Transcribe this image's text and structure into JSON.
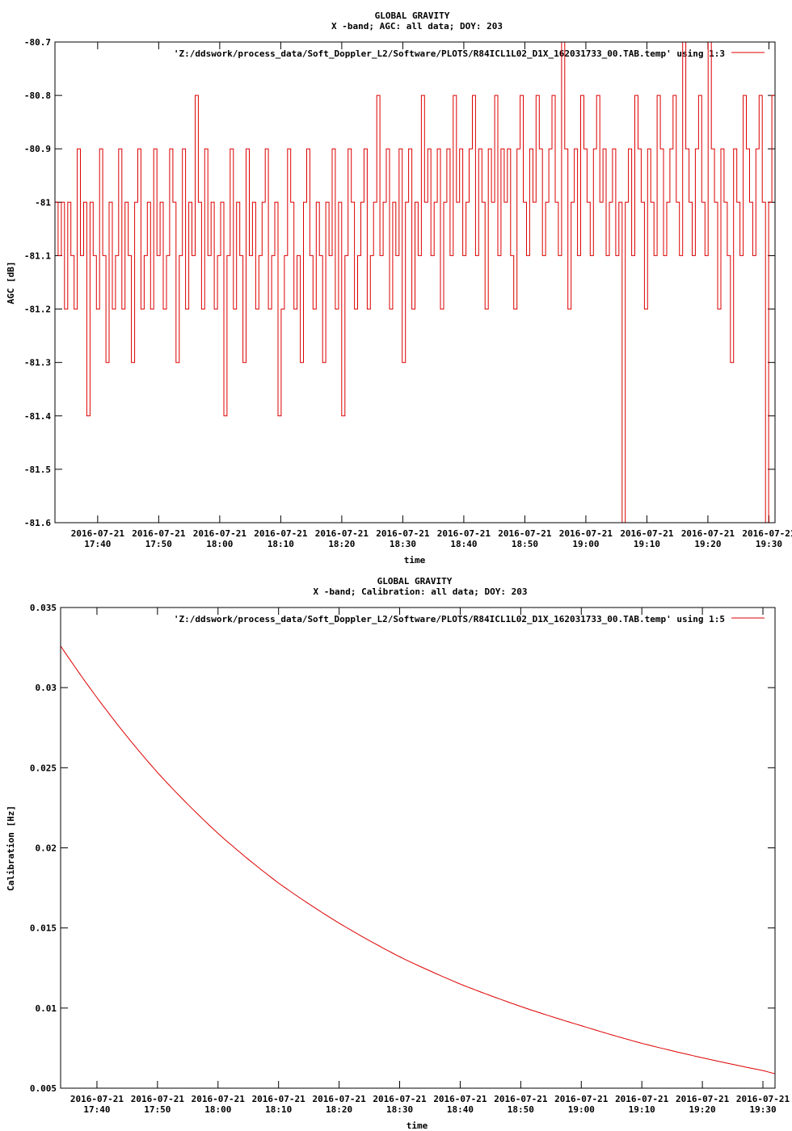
{
  "colors": {
    "series": "#dd0000",
    "axis": "#000000",
    "background": "#ffffff"
  },
  "x_tick_date": "2016-07-21",
  "chart_data": [
    {
      "type": "line",
      "title": "GLOBAL GRAVITY",
      "subtitle": "X -band; AGC: all data; DOY: 203",
      "xlabel": "time",
      "ylabel": "AGC [dB]",
      "legend_entry": "'Z:/ddswork/process_data/Soft_Doppler_L2/Software/PLOTS/R84ICL1L02_D1X_162031733_00.TAB.temp' using 1:3",
      "legend_position": "top-right",
      "xlim": [
        "17:33",
        "19:31"
      ],
      "ylim": [
        -81.6,
        -80.7
      ],
      "y_ticks": [
        "-80.7",
        "-80.8",
        "-80.9",
        "-81",
        "-81.1",
        "-81.2",
        "-81.3",
        "-81.4",
        "-81.5",
        "-81.6"
      ],
      "x_ticks": [
        "17:40",
        "17:50",
        "18:00",
        "18:10",
        "18:20",
        "18:30",
        "18:40",
        "18:50",
        "19:00",
        "19:10",
        "19:20",
        "19:30"
      ],
      "grid": false,
      "series": [
        {
          "time_start": "17:33",
          "time_end": "19:31",
          "levels": [
            -81.0,
            -81.1,
            -81.0,
            -81.2,
            -81.0,
            -81.1,
            -81.2,
            -80.9,
            -81.1,
            -81.0,
            -81.4,
            -81.0,
            -81.1,
            -81.2,
            -80.9,
            -81.1,
            -81.3,
            -81.0,
            -81.2,
            -81.1,
            -80.9,
            -81.2,
            -81.0,
            -81.1,
            -81.3,
            -81.0,
            -80.9,
            -81.2,
            -81.1,
            -81.0,
            -81.2,
            -80.9,
            -81.1,
            -81.0,
            -81.2,
            -81.1,
            -80.9,
            -81.0,
            -81.3,
            -81.1,
            -80.9,
            -81.2,
            -81.0,
            -81.1,
            -80.8,
            -81.0,
            -81.2,
            -80.9,
            -81.1,
            -81.0,
            -81.2,
            -81.1,
            -81.0,
            -81.4,
            -81.1,
            -80.9,
            -81.2,
            -81.0,
            -81.1,
            -81.3,
            -80.9,
            -81.1,
            -81.0,
            -81.2,
            -81.1,
            -81.0,
            -80.9,
            -81.2,
            -81.1,
            -81.0,
            -81.4,
            -81.2,
            -81.1,
            -80.9,
            -81.0,
            -81.2,
            -81.1,
            -81.3,
            -81.0,
            -80.9,
            -81.1,
            -81.2,
            -81.0,
            -81.1,
            -81.3,
            -81.0,
            -81.1,
            -80.9,
            -81.2,
            -81.0,
            -81.4,
            -81.1,
            -80.9,
            -81.0,
            -81.2,
            -81.1,
            -81.0,
            -80.9,
            -81.2,
            -81.1,
            -81.0,
            -80.8,
            -81.1,
            -81.0,
            -80.9,
            -81.2,
            -81.0,
            -81.1,
            -80.9,
            -81.3,
            -81.0,
            -80.9,
            -81.2,
            -81.0,
            -81.1,
            -80.8,
            -81.0,
            -80.9,
            -81.1,
            -81.0,
            -80.9,
            -81.2,
            -81.0,
            -80.9,
            -81.1,
            -80.8,
            -81.0,
            -80.9,
            -81.1,
            -81.0,
            -80.9,
            -80.8,
            -81.1,
            -80.9,
            -81.0,
            -81.2,
            -80.9,
            -81.0,
            -80.8,
            -81.1,
            -80.9,
            -81.0,
            -80.9,
            -81.1,
            -81.2,
            -80.9,
            -80.8,
            -81.0,
            -81.1,
            -80.9,
            -81.0,
            -80.8,
            -80.9,
            -81.1,
            -81.0,
            -80.9,
            -80.8,
            -81.0,
            -81.1,
            -80.7,
            -80.9,
            -81.2,
            -81.0,
            -80.9,
            -81.1,
            -80.8,
            -80.9,
            -81.0,
            -81.1,
            -80.9,
            -80.8,
            -81.0,
            -80.9,
            -81.1,
            -81.0,
            -80.9,
            -81.1,
            -81.0,
            -81.6,
            -81.0,
            -80.9,
            -81.1,
            -80.8,
            -80.9,
            -81.0,
            -81.2,
            -80.9,
            -81.0,
            -81.1,
            -80.8,
            -80.9,
            -81.1,
            -81.0,
            -80.9,
            -80.8,
            -81.0,
            -81.1,
            -80.7,
            -80.9,
            -81.0,
            -81.1,
            -80.9,
            -80.8,
            -81.0,
            -81.1,
            -80.7,
            -80.9,
            -81.0,
            -81.2,
            -80.9,
            -81.0,
            -81.1,
            -81.3,
            -80.9,
            -81.0,
            -81.1,
            -80.8,
            -80.9,
            -81.0,
            -81.1,
            -80.9,
            -80.8,
            -81.0,
            -81.6,
            -81.0,
            -80.8,
            -81.1
          ]
        }
      ]
    },
    {
      "type": "line",
      "title": "GLOBAL GRAVITY",
      "subtitle": "X -band; Calibration: all data; DOY: 203",
      "xlabel": "time",
      "ylabel": "Calibration [Hz]",
      "legend_entry": "'Z:/ddswork/process_data/Soft_Doppler_L2/Software/PLOTS/R84ICL1L02_D1X_162031733_00.TAB.temp' using 1:5",
      "legend_position": "top-right",
      "xlim": [
        "17:34",
        "19:32"
      ],
      "ylim": [
        0.005,
        0.035
      ],
      "y_ticks": [
        "0.035",
        "0.03",
        "0.025",
        "0.02",
        "0.015",
        "0.01",
        "0.005"
      ],
      "x_ticks": [
        "17:40",
        "17:50",
        "18:00",
        "18:10",
        "18:20",
        "18:30",
        "18:40",
        "18:50",
        "19:00",
        "19:10",
        "19:20",
        "19:30"
      ],
      "grid": false,
      "series": [
        {
          "x": [
            "17:34",
            "17:50",
            "18:00",
            "18:10",
            "18:20",
            "18:30",
            "18:40",
            "18:50",
            "19:00",
            "19:10",
            "19:20",
            "19:30",
            "19:32"
          ],
          "y": [
            0.0326,
            0.0247,
            0.0209,
            0.0178,
            0.0153,
            0.0132,
            0.0115,
            0.0101,
            0.0089,
            0.0078,
            0.0069,
            0.0061,
            0.0059
          ]
        }
      ]
    }
  ]
}
